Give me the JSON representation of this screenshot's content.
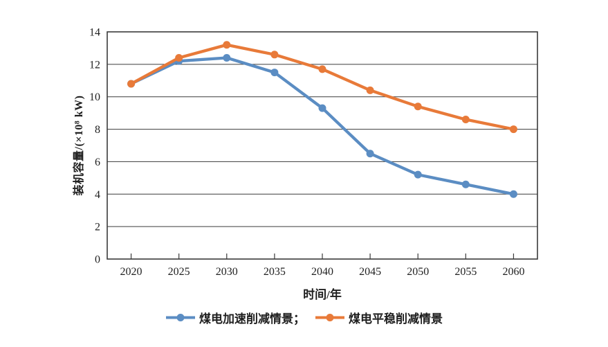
{
  "chart_data": {
    "type": "line",
    "title": "",
    "xlabel": "时间/年",
    "ylabel": "装机容量/(×10⁸ kW)",
    "categories": [
      "2020",
      "2025",
      "2030",
      "2035",
      "2040",
      "2045",
      "2050",
      "2055",
      "2060"
    ],
    "yticks": [
      0,
      2,
      4,
      6,
      8,
      10,
      12,
      14
    ],
    "ylim": [
      0,
      14
    ],
    "grid": "horizontal",
    "legend_position": "bottom",
    "axis_color": "#3a3a3a",
    "text_color": "#1f1f1f",
    "series": [
      {
        "name": "煤电加速削减情景",
        "legend_label": "煤电加速削减情景；",
        "color": "#5b8dc3",
        "values": [
          10.8,
          12.2,
          12.4,
          11.5,
          9.3,
          6.5,
          5.2,
          4.6,
          4.0
        ]
      },
      {
        "name": "煤电平稳削减情景",
        "legend_label": "煤电平稳削减情景",
        "color": "#e87a39",
        "values": [
          10.8,
          12.4,
          13.2,
          12.6,
          11.7,
          10.4,
          9.4,
          8.6,
          8.0
        ]
      }
    ]
  }
}
